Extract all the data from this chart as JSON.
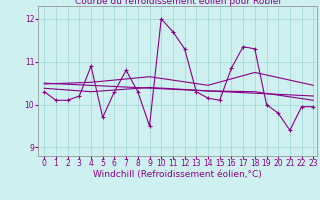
{
  "title": "Courbe du refroidissement éolien pour Robiei",
  "xlabel": "Windchill (Refroidissement éolien,°C)",
  "bg_color": "#cff0f0",
  "line_color": "#880088",
  "grid_color": "#aadddd",
  "xlim": [
    -0.5,
    23.3
  ],
  "ylim": [
    8.8,
    12.3
  ],
  "yticks": [
    9,
    10,
    11,
    12
  ],
  "xticks": [
    0,
    1,
    2,
    3,
    4,
    5,
    6,
    7,
    8,
    9,
    10,
    11,
    12,
    13,
    14,
    15,
    16,
    17,
    18,
    19,
    20,
    21,
    22,
    23
  ],
  "data_x": [
    0,
    1,
    2,
    3,
    4,
    5,
    6,
    7,
    8,
    9,
    10,
    11,
    12,
    13,
    14,
    15,
    16,
    17,
    18,
    19,
    20,
    21,
    22,
    23
  ],
  "data_y": [
    10.3,
    10.1,
    10.1,
    10.2,
    10.9,
    9.7,
    10.3,
    10.8,
    10.3,
    9.5,
    12.0,
    11.7,
    11.3,
    10.3,
    10.15,
    10.1,
    10.85,
    11.35,
    11.3,
    10.0,
    9.8,
    9.4,
    9.95,
    9.95
  ],
  "trend_x": [
    0,
    23
  ],
  "trend_y": [
    10.5,
    10.2
  ],
  "smooth1_x": [
    0,
    4,
    9,
    14,
    18,
    23
  ],
  "smooth1_y": [
    10.48,
    10.52,
    10.65,
    10.45,
    10.75,
    10.45
  ],
  "smooth2_x": [
    0,
    4,
    9,
    14,
    18,
    23
  ],
  "smooth2_y": [
    10.38,
    10.3,
    10.4,
    10.32,
    10.3,
    10.1
  ],
  "title_fontsize": 6.5,
  "tick_fontsize": 5.5,
  "xlabel_fontsize": 6.5
}
